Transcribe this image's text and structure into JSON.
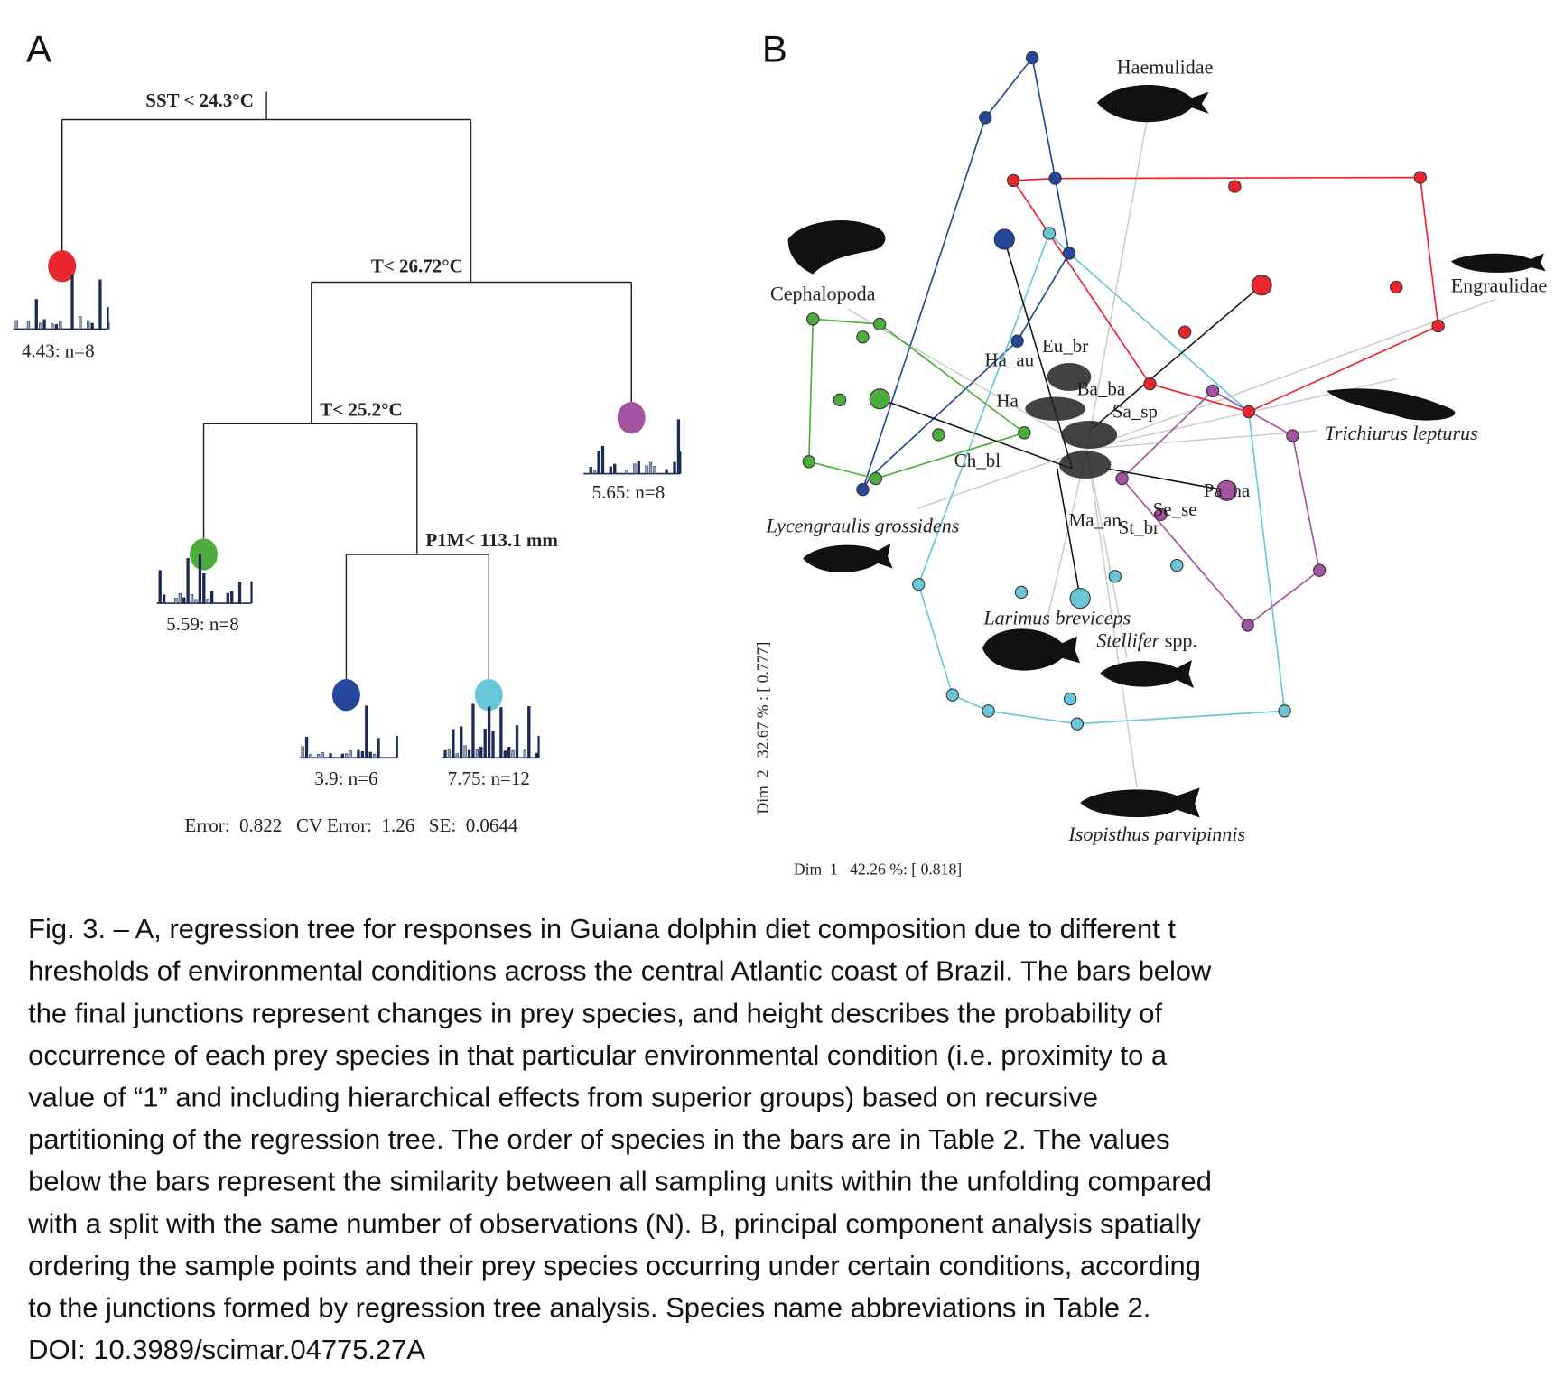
{
  "panel_a": {
    "label": "A",
    "splits": [
      "SST < 24.3°C",
      "T< 26.72°C",
      "T< 25.2°C",
      "P1M< 113.1 mm"
    ],
    "leaves": [
      "4.43: n=8",
      "5.65: n=8",
      "5.59: n=8",
      "3.9: n=6",
      "7.75: n=12"
    ],
    "footer": "Error:  0.822   CV Error:  1.26   SE:  0.0644"
  },
  "panel_b": {
    "label": "B",
    "taxa": {
      "haemulidae": "Haemulidae",
      "cephalopoda": "Cephalopoda",
      "engraulidae": "Engraulidae",
      "trichiurus": "Trichiurus lepturus",
      "lycengraulis": "Lycengraulis grossidens",
      "larimus": "Larimus breviceps",
      "stellifer_genus": "Stellifer",
      "stellifer_suffix": "spp.",
      "isopisthus": "Isopisthus parvipinnis"
    },
    "species_codes": [
      "Eu_br",
      "Ha_au",
      "Ha",
      "Ba_ba",
      "Sa_sp",
      "Ch_bl",
      "Pa_ha",
      "Se_se",
      "Ma_an",
      "St_br"
    ],
    "axis_x": "Dim  1   42.26 %: [ 0.818]",
    "axis_y": "Dim  2   32.67 % : [ 0.777]"
  },
  "caption": [
    "Fig. 3. – A, regression tree for responses in Guiana dolphin diet composition due to different t",
    "hresholds of environmental conditions across the central Atlantic coast of Brazil. The bars below",
    "the final junctions represent changes in prey species, and height describes the probability of",
    "occurrence of each prey species in that particular environmental condition (i.e. proximity to a",
    "value of “1” and including hierarchical effects from superior groups) based on recursive",
    "partitioning of the regression tree. The order of species in the bars are in Table 2. The values",
    "below the bars represent the similarity between all sampling units within the unfolding compared",
    "with a split with the same number of observations (N). B, principal component analysis spatially",
    "ordering the sample points and their prey species occurring under certain conditions, according",
    "to the junctions formed by regression tree analysis. Species name abbreviations in Table 2.",
    "DOI: 10.3989/scimar.04775.27A"
  ]
}
